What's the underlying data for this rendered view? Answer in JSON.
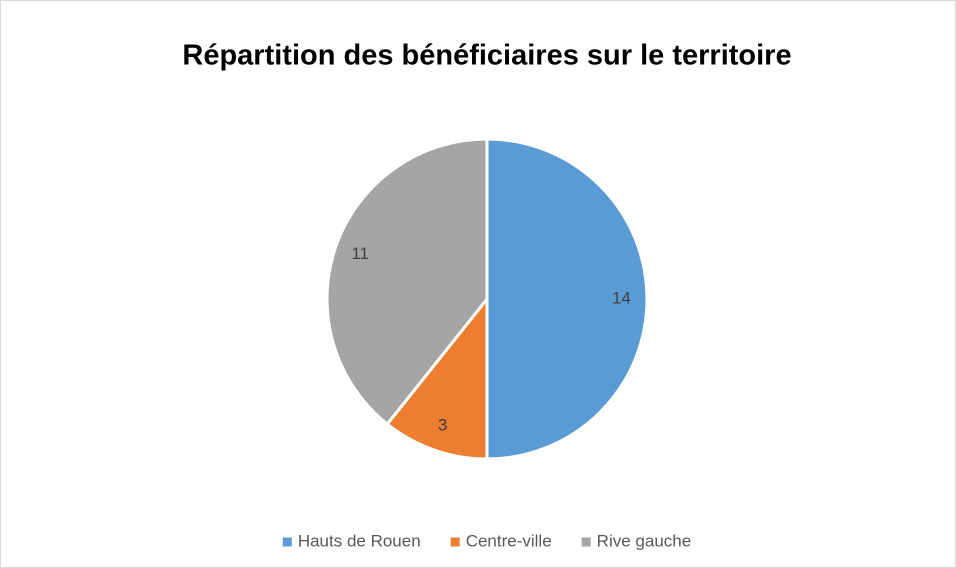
{
  "chart_data": {
    "type": "pie",
    "title": "Répartition des bénéficiaires sur le territoire",
    "categories": [
      "Hauts de Rouen",
      "Centre-ville",
      "Rive gauche"
    ],
    "values": [
      14,
      3,
      11
    ],
    "colors": [
      "#5b9bd5",
      "#ed7d31",
      "#a5a5a5"
    ],
    "legend": "bottom"
  }
}
